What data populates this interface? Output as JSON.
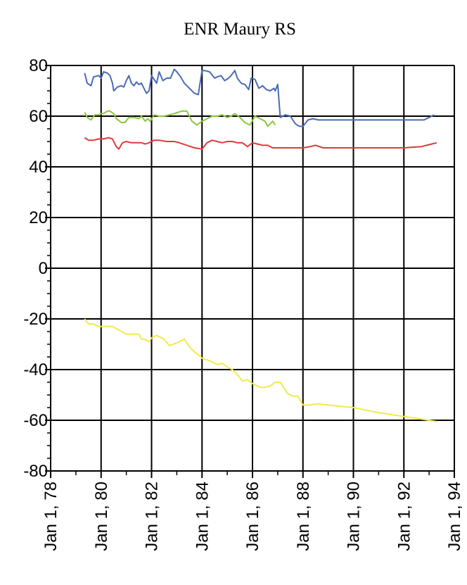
{
  "chart_data": {
    "type": "line",
    "title": "ENR Maury RS",
    "xlabel": "",
    "ylabel": "",
    "ylim": [
      -80,
      80
    ],
    "yticks": [
      -80,
      -60,
      -40,
      -20,
      0,
      20,
      40,
      60,
      80
    ],
    "ytick_labels": [
      "-80",
      "-60",
      "-40",
      "-20",
      "0",
      "20",
      "40",
      "60",
      "80"
    ],
    "xlim": [
      1978,
      1994
    ],
    "xticks": [
      1978,
      1980,
      1982,
      1984,
      1986,
      1988,
      1990,
      1992,
      1994
    ],
    "xtick_labels": [
      "Jan 1, 78",
      "Jan 1, 80",
      "Jan 1, 82",
      "Jan 1, 84",
      "Jan 1, 86",
      "Jan 1, 88",
      "Jan 1, 90",
      "Jan 1, 92",
      "Jan 1, 94"
    ],
    "grid": true,
    "series": [
      {
        "color": "#4a6bb5",
        "x": [
          1979.35,
          1979.45,
          1979.6,
          1979.7,
          1979.9,
          1980.0,
          1980.1,
          1980.25,
          1980.35,
          1980.45,
          1980.5,
          1980.65,
          1980.8,
          1980.9,
          1981.0,
          1981.1,
          1981.2,
          1981.3,
          1981.4,
          1981.5,
          1981.6,
          1981.7,
          1981.8,
          1981.9,
          1982.0,
          1982.1,
          1982.2,
          1982.3,
          1982.45,
          1982.6,
          1982.75,
          1982.9,
          1983.0,
          1983.15,
          1983.3,
          1983.5,
          1983.7,
          1983.85,
          1984.0,
          1984.1,
          1984.3,
          1984.5,
          1984.6,
          1984.75,
          1984.9,
          1985.05,
          1985.15,
          1985.3,
          1985.4,
          1985.55,
          1985.7,
          1985.85,
          1985.95,
          1986.1,
          1986.25,
          1986.4,
          1986.55,
          1986.7,
          1986.85,
          1986.9,
          1987.0,
          1987.1,
          1987.3,
          1987.5,
          1987.7,
          1987.85,
          1988.0,
          1988.2,
          1988.4,
          1988.6,
          1988.8,
          1989.0,
          1990.0,
          1991.0,
          1992.0,
          1992.8,
          1993.0,
          1993.2
        ],
        "y": [
          77,
          73,
          72,
          75.5,
          76,
          75,
          77.5,
          77,
          76,
          73,
          70,
          71.5,
          72,
          71.5,
          74,
          76,
          73,
          72,
          73.5,
          72.5,
          73,
          71,
          69,
          70,
          76,
          74.5,
          73,
          77.5,
          74,
          75,
          75,
          78.5,
          77.5,
          75.5,
          73,
          71,
          69,
          68.5,
          78,
          78,
          77.5,
          75,
          75.5,
          76,
          74,
          75,
          76,
          78,
          75,
          73,
          72.5,
          70.5,
          75,
          74.5,
          71,
          72,
          70.5,
          70,
          71,
          70,
          72.5,
          59.5,
          60.5,
          60,
          57,
          56,
          56,
          58.5,
          59,
          58.5,
          58.5,
          58.5,
          58.5,
          58.5,
          58.5,
          58.5,
          59.5,
          60.5
        ]
      },
      {
        "color": "#8cc63f",
        "x": [
          1979.35,
          1979.45,
          1979.6,
          1979.75,
          1979.9,
          1980.0,
          1980.1,
          1980.25,
          1980.35,
          1980.5,
          1980.6,
          1980.8,
          1980.95,
          1981.1,
          1981.3,
          1981.5,
          1981.6,
          1981.75,
          1981.85,
          1981.95,
          1982.1,
          1982.3,
          1982.5,
          1982.7,
          1982.9,
          1983.05,
          1983.2,
          1983.4,
          1983.6,
          1983.8,
          1984.0,
          1984.2,
          1984.4,
          1984.6,
          1984.8,
          1985.0,
          1985.15,
          1985.3,
          1985.5,
          1985.7,
          1985.9,
          1986.1,
          1986.3,
          1986.5,
          1986.6,
          1986.7,
          1986.8,
          1986.9
        ],
        "y": [
          61.5,
          59.5,
          58.5,
          60.5,
          60.5,
          61,
          61,
          62,
          62,
          61,
          59,
          57.5,
          57.5,
          59.5,
          59.5,
          59,
          60,
          58,
          59,
          58,
          60.5,
          60,
          60,
          60.5,
          61,
          61.5,
          62,
          62,
          58,
          56.5,
          58,
          59,
          60,
          60,
          60.5,
          59.5,
          60,
          61,
          59.5,
          57.5,
          56.5,
          60,
          59,
          58,
          56,
          57,
          58,
          56.5
        ]
      },
      {
        "color": "#e03a3a",
        "x": [
          1979.35,
          1979.5,
          1979.7,
          1979.9,
          1980.1,
          1980.3,
          1980.45,
          1980.6,
          1980.7,
          1980.85,
          1981.0,
          1981.2,
          1981.4,
          1981.6,
          1981.75,
          1981.9,
          1982.1,
          1982.3,
          1982.6,
          1982.9,
          1983.1,
          1983.4,
          1983.7,
          1984.0,
          1984.2,
          1984.4,
          1984.6,
          1984.8,
          1985.0,
          1985.2,
          1985.4,
          1985.6,
          1985.8,
          1986.0,
          1986.2,
          1986.4,
          1986.6,
          1986.8,
          1987.0,
          1987.5,
          1988.0,
          1988.3,
          1988.5,
          1988.8,
          1990.0,
          1991.0,
          1992.0,
          1992.7,
          1992.9,
          1993.1,
          1993.3
        ],
        "y": [
          51.5,
          50.5,
          50.5,
          51,
          51,
          51.5,
          51,
          48,
          47,
          49.5,
          50,
          49.5,
          49.5,
          49.5,
          49,
          49.5,
          50.5,
          50.5,
          50,
          50,
          49.5,
          48.5,
          47.5,
          47,
          49.5,
          50.5,
          50,
          49.5,
          50,
          50,
          49.5,
          49.5,
          48,
          49.5,
          49,
          48.5,
          48.5,
          47.5,
          47.5,
          47.5,
          47.5,
          48,
          48.5,
          47.5,
          47.5,
          47.5,
          47.5,
          48,
          48.5,
          49,
          49.5
        ]
      },
      {
        "color": "#f2ea4a",
        "x": [
          1979.35,
          1979.5,
          1979.7,
          1979.9,
          1980.1,
          1980.3,
          1980.45,
          1981.0,
          1981.5,
          1981.6,
          1981.7,
          1981.9,
          1982.0,
          1982.2,
          1982.5,
          1982.7,
          1983.0,
          1983.1,
          1983.3,
          1983.5,
          1983.7,
          1983.9,
          1984.0,
          1984.3,
          1984.6,
          1984.8,
          1985.0,
          1985.2,
          1985.4,
          1985.6,
          1985.8,
          1986.0,
          1986.3,
          1986.5,
          1986.7,
          1986.9,
          1987.1,
          1987.4,
          1987.6,
          1987.8,
          1988.0,
          1988.2,
          1988.6,
          1989.0,
          1990.0,
          1991.0,
          1992.0,
          1993.0,
          1993.3
        ],
        "y": [
          -20,
          -22,
          -22,
          -23,
          -23,
          -23,
          -23,
          -26,
          -26,
          -28,
          -28,
          -29,
          -27.5,
          -26.5,
          -28,
          -30.5,
          -29.5,
          -29,
          -28,
          -31,
          -33,
          -34.5,
          -35.5,
          -36.5,
          -38,
          -37.5,
          -39,
          -40,
          -42,
          -44.5,
          -44,
          -45.5,
          -47,
          -47,
          -46.5,
          -45,
          -45,
          -49.5,
          -50.5,
          -50.5,
          -54,
          -54,
          -53.5,
          -54,
          -55,
          -57,
          -58.5,
          -60,
          -60.5
        ]
      }
    ]
  }
}
